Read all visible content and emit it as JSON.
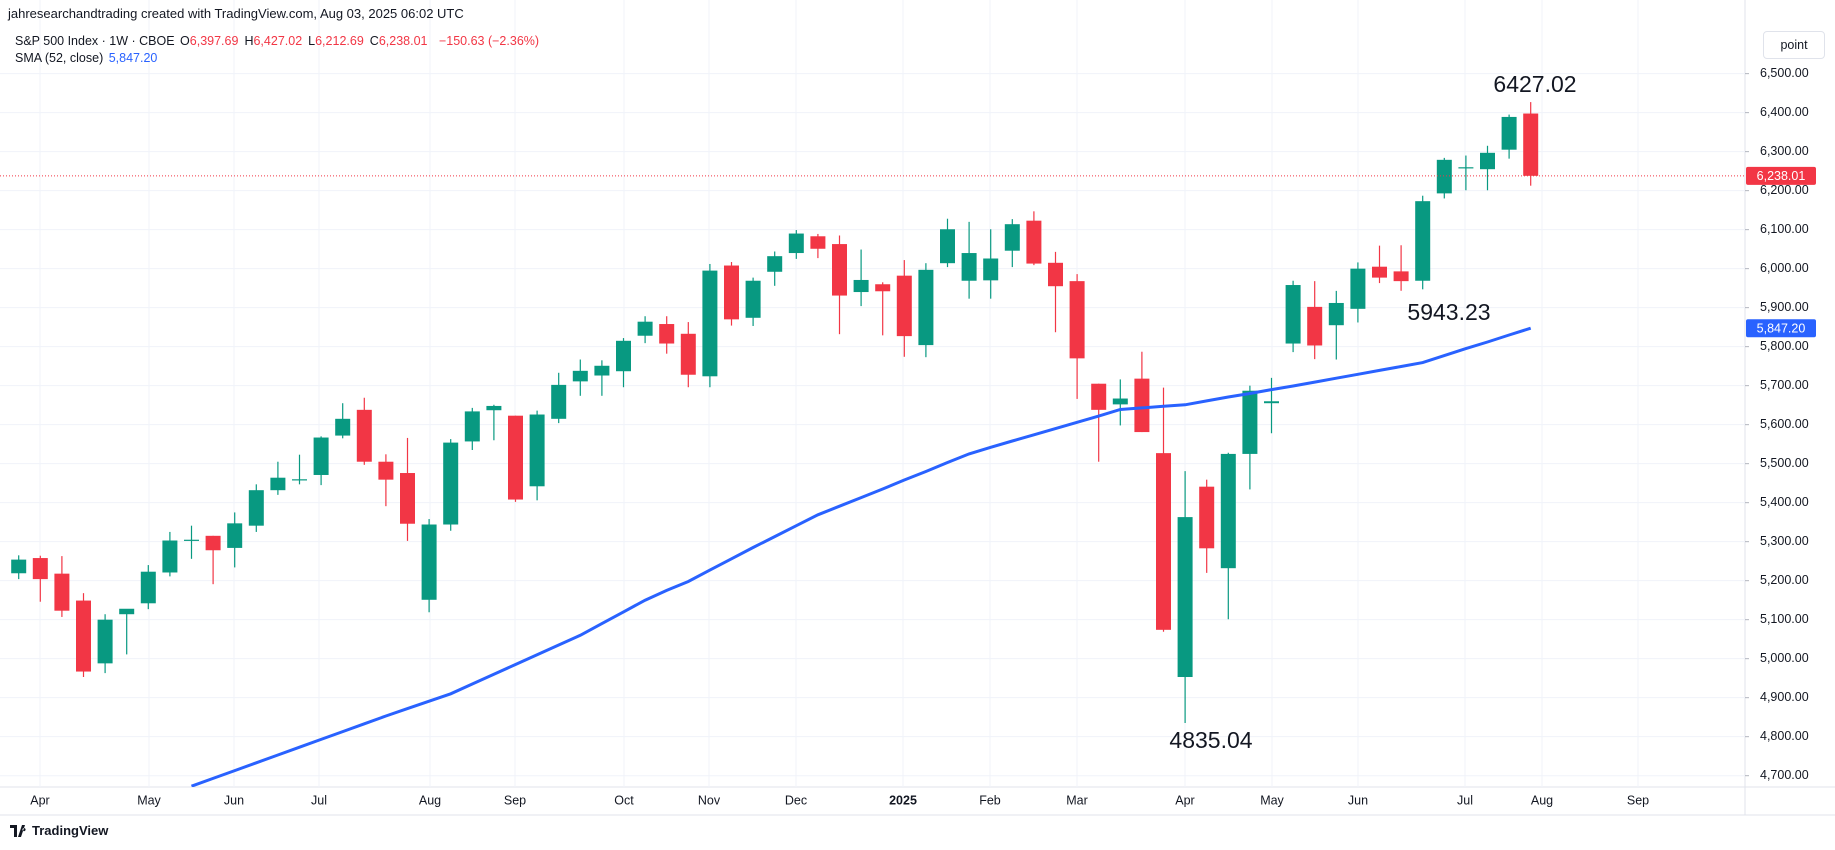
{
  "header": "jahresearchandtrading created with TradingView.com, Aug 03, 2025 06:02 UTC",
  "legend": {
    "symbol": "S&P 500 Index · 1W · CBOE",
    "items": [
      {
        "key": "O",
        "value": "6,397.69"
      },
      {
        "key": "H",
        "value": "6,427.02"
      },
      {
        "key": "L",
        "value": "6,212.69"
      },
      {
        "key": "C",
        "value": "6,238.01"
      }
    ],
    "change": "−150.63 (−2.36%)",
    "sma_name": "SMA (52, close)",
    "sma_value": "5,847.20"
  },
  "button": "point",
  "brand": "TradingView",
  "chart_data": {
    "type": "candlestick",
    "up_color": "#089981",
    "down_color": "#f23645",
    "open": [
      5219,
      5258,
      5218,
      5149,
      4988,
      5114,
      5142,
      5221,
      5305,
      5315,
      5284,
      5341,
      5432,
      5460,
      5471,
      5572,
      5638,
      5505,
      5476,
      5151,
      5344,
      5557,
      5637,
      5623,
      5442,
      5615,
      5711,
      5726,
      5737,
      5828,
      5858,
      5833,
      5724,
      6008,
      5874,
      5992,
      6040,
      6083,
      6063,
      5940,
      5960,
      5982,
      5804,
      6014,
      5969,
      5970,
      6046,
      6123,
      6015,
      5968,
      5705,
      5652,
      5718,
      5527,
      4953,
      5441,
      5232,
      5525,
      5655,
      5808,
      5902,
      5855,
      5897,
      6005,
      5993,
      5969,
      6193,
      6259,
      6255,
      6305,
      6397.69
    ],
    "high": [
      5265,
      5264,
      5263,
      5168,
      5114,
      5123,
      5240,
      5325,
      5341,
      5315,
      5375,
      5447,
      5505,
      5523,
      5570,
      5655,
      5669,
      5524,
      5566,
      5358,
      5563,
      5643,
      5651,
      5623,
      5636,
      5733,
      5767,
      5765,
      5822,
      5878,
      5878,
      5863,
      6012,
      6017,
      5977,
      6044,
      6099,
      6089,
      6085,
      6049,
      5965,
      6022,
      6014,
      6128,
      6120,
      6101,
      6127,
      6147,
      6043,
      5986,
      5705,
      5716,
      5787,
      5695,
      5481,
      5459,
      5528,
      5700,
      5720,
      5969,
      5968,
      5943,
      6016,
      6059,
      6060,
      6187,
      6284,
      6290,
      6315,
      6395,
      6427.02
    ],
    "low": [
      5204,
      5146,
      5107,
      4953,
      4963,
      5011,
      5127,
      5211,
      5256,
      5191,
      5234,
      5325,
      5420,
      5447,
      5445,
      5565,
      5497,
      5391,
      5302,
      5119,
      5328,
      5535,
      5560,
      5402,
      5406,
      5604,
      5674,
      5674,
      5696,
      5809,
      5782,
      5696,
      5696,
      5854,
      5853,
      5956,
      6025,
      6027,
      5832,
      5904,
      5829,
      5774,
      5773,
      6004,
      5923,
      5923,
      6004,
      6009,
      5837,
      5666,
      5505,
      5598,
      5581,
      5069,
      4835.04,
      5220,
      5101,
      5434,
      5578,
      5786,
      5768,
      5767,
      5862,
      5963,
      5943.23,
      5947,
      6180,
      6201,
      6201,
      6282,
      6212.69
    ],
    "close": [
      5254,
      5204,
      5123,
      4967,
      5100,
      5128,
      5223,
      5303,
      5305,
      5278,
      5347,
      5432,
      5464,
      5460,
      5567,
      5615,
      5505,
      5459,
      5346,
      5344,
      5554,
      5634,
      5648,
      5408,
      5626,
      5702,
      5738,
      5751,
      5815,
      5864,
      5808,
      5728,
      5995,
      5870,
      5969,
      6032,
      6090,
      6051,
      5931,
      5971,
      5942,
      5827,
      5997,
      6101,
      6040,
      6026,
      6114,
      6013,
      5955,
      5770,
      5638,
      5667,
      5581,
      5074,
      5363,
      5283,
      5525,
      5687,
      5660,
      5958,
      5803,
      5912,
      6000,
      5977,
      5968,
      6173,
      6279,
      6260,
      6297,
      6389,
      6238.01
    ],
    "series": [
      {
        "name": "SMA (52, close)",
        "color": "#2962ff",
        "values": [
          null,
          null,
          null,
          null,
          null,
          null,
          null,
          null,
          4673,
          4693,
          4713,
          4733,
          4753,
          4773,
          4793,
          4813,
          4833,
          4853,
          4872,
          4891,
          4910,
          4935,
          4960,
          4985,
          5010,
          5035,
          5060,
          5090,
          5120,
          5150,
          5175,
          5198,
          5227,
          5256,
          5285,
          5313,
          5341,
          5369,
          5391,
          5413,
          5435,
          5458,
          5480,
          5503,
          5525,
          5542,
          5558,
          5574,
          5590,
          5606,
          5622,
          5639,
          5643,
          5647,
          5651,
          5661,
          5671,
          5680,
          5690,
          5699,
          5709,
          5719,
          5729,
          5739,
          5749,
          5759,
          5777,
          5795,
          5812,
          5830,
          5847.2
        ]
      }
    ],
    "last_price_label": "6,238.01",
    "sma_last_label": "5,847.20",
    "annotations": [
      "6427.02",
      "5943.23",
      "4835.04"
    ],
    "month_labels": [
      "Apr",
      "May",
      "Jun",
      "Jul",
      "Aug",
      "Sep",
      "Oct",
      "Nov",
      "Dec",
      "2025",
      "Feb",
      "Mar",
      "Apr",
      "May",
      "Jun",
      "Jul",
      "Aug",
      "Sep"
    ],
    "ylim": [
      4671,
      6617
    ],
    "yticks": [
      {
        "value": 4700,
        "label": "4,700.00"
      },
      {
        "value": 4800,
        "label": "4,800.00"
      },
      {
        "value": 4900,
        "label": "4,900.00"
      },
      {
        "value": 5000,
        "label": "5,000.00"
      },
      {
        "value": 5100,
        "label": "5,100.00"
      },
      {
        "value": 5200,
        "label": "5,200.00"
      },
      {
        "value": 5300,
        "label": "5,300.00"
      },
      {
        "value": 5400,
        "label": "5,400.00"
      },
      {
        "value": 5500,
        "label": "5,500.00"
      },
      {
        "value": 5600,
        "label": "5,600.00"
      },
      {
        "value": 5700,
        "label": "5,700.00"
      },
      {
        "value": 5800,
        "label": "5,800.00"
      },
      {
        "value": 5900,
        "label": "5,900.00"
      },
      {
        "value": 6000,
        "label": "6,000.00"
      },
      {
        "value": 6100,
        "label": "6,100.00"
      },
      {
        "value": 6200,
        "label": "6,200.00"
      },
      {
        "value": 6300,
        "label": "6,300.00"
      },
      {
        "value": 6400,
        "label": "6,400.00"
      },
      {
        "value": 6500,
        "label": "6,500.00"
      }
    ],
    "grid": true
  }
}
